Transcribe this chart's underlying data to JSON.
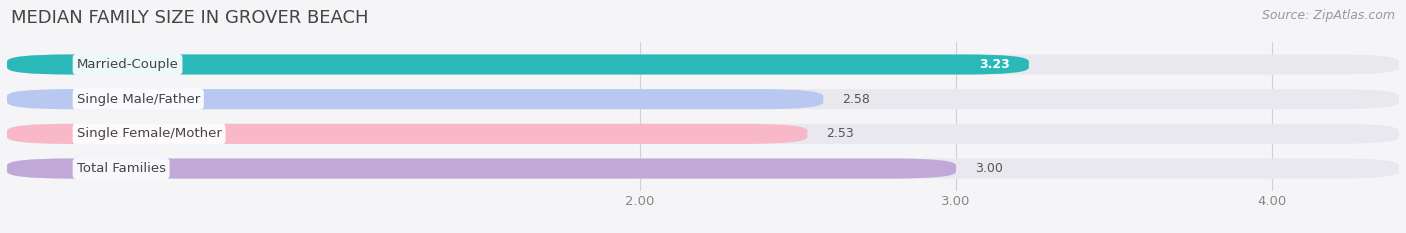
{
  "title": "MEDIAN FAMILY SIZE IN GROVER BEACH",
  "source": "Source: ZipAtlas.com",
  "categories": [
    "Married-Couple",
    "Single Male/Father",
    "Single Female/Mother",
    "Total Families"
  ],
  "values": [
    3.23,
    2.58,
    2.53,
    3.0
  ],
  "bar_colors": [
    "#2ab8b8",
    "#b8c8f0",
    "#f8b8c8",
    "#c0a8d8"
  ],
  "bar_label_colors": [
    "white",
    "#555555",
    "#555555",
    "#555555"
  ],
  "xmin": 0.0,
  "xmax": 4.4,
  "xticks": [
    2.0,
    3.0,
    4.0
  ],
  "xtick_labels": [
    "2.00",
    "3.00",
    "4.00"
  ],
  "bar_height": 0.58,
  "background_color": "#f5f5f8",
  "plot_bg_color": "#f5f5f8",
  "title_fontsize": 13,
  "label_fontsize": 9.5,
  "value_fontsize": 9,
  "source_fontsize": 9,
  "track_color": "#e8e8ee"
}
